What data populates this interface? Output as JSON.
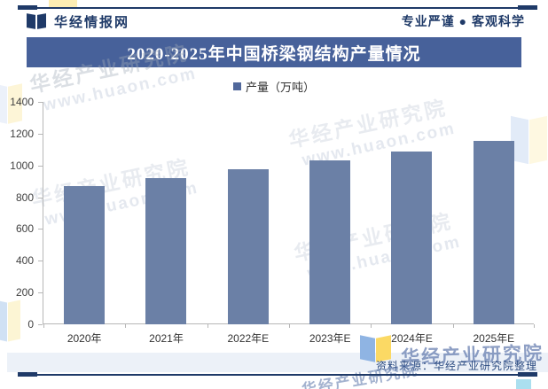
{
  "header": {
    "brand": "华经情报网",
    "slogan": "专业严谨 ● 客观科学"
  },
  "title_bar": {
    "title": "2020-2025年中国桥梁钢结构产量情况"
  },
  "legend": {
    "label": "产量（万吨）"
  },
  "footer": {
    "source": "资料来源：华经产业研究院整理"
  },
  "watermarks": {
    "name": "华经产业研究院",
    "url": "www.huaon.com"
  },
  "colors": {
    "accent_navy": "#1f3a68",
    "title_bar_bg": "#47619a",
    "bar_fill": "#6b80a6",
    "axis_gray": "#b7b7b7",
    "footer_strip_bg": "#ecf1f8"
  },
  "chart_data": {
    "type": "bar",
    "title": "2020-2025年中国桥梁钢结构产量情况",
    "legend": [
      "产量（万吨）"
    ],
    "categories": [
      "2020年",
      "2021年",
      "2022年E",
      "2023年E",
      "2024年E",
      "2025年E"
    ],
    "values": [
      870,
      920,
      975,
      1030,
      1090,
      1155
    ],
    "xlabel": "",
    "ylabel": "",
    "ylim": [
      0,
      1400
    ],
    "ytick_step": 200,
    "grid": false,
    "legend_position": "top",
    "bar_color": "#6b80a6"
  }
}
